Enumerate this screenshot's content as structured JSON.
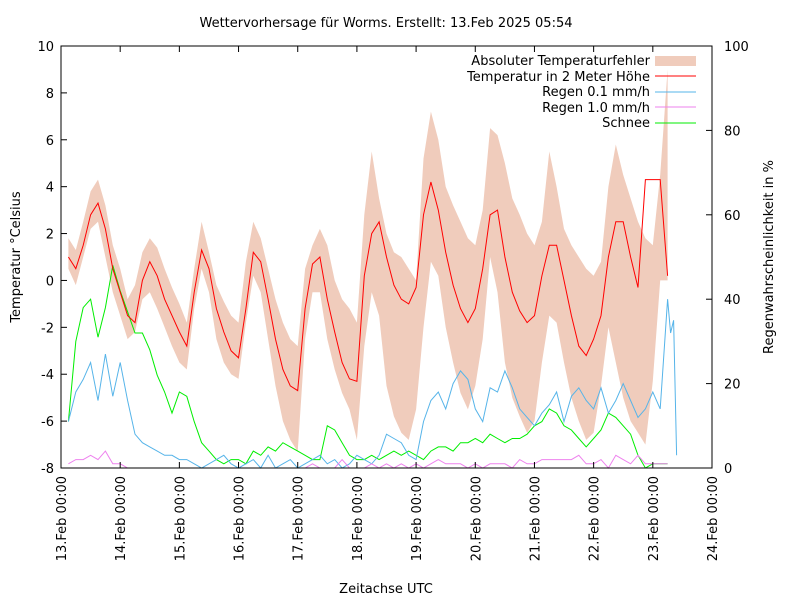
{
  "chart_data": {
    "type": "line",
    "title": "Wettervorhersage für Worms. Erstellt: 13.Feb 2025 05:54",
    "xlabel": "Zeitachse UTC",
    "ylabel": "Temperatur °Celsius",
    "y2label": "Regenwahrscheinlichkeit in %",
    "ylim": [
      -8,
      10
    ],
    "y2lim": [
      0,
      100
    ],
    "xlim_days": [
      0,
      11
    ],
    "grid": false,
    "legend_position": "top-right",
    "yticks": [
      "-8",
      "-6",
      "-4",
      "-2",
      "0",
      "2",
      "4",
      "6",
      "8",
      "10"
    ],
    "y2ticks": [
      "0",
      "20",
      "40",
      "60",
      "80",
      "100"
    ],
    "xticks": [
      "13.Feb 00:00",
      "14.Feb 00:00",
      "15.Feb 00:00",
      "16.Feb 00:00",
      "17.Feb 00:00",
      "18.Feb 00:00",
      "19.Feb 00:00",
      "20.Feb 00:00",
      "21.Feb 00:00",
      "22.Feb 00:00",
      "23.Feb 00:00",
      "24.Feb 00:00"
    ],
    "x_step_hours": 3,
    "x_start_hours": 3,
    "series": [
      {
        "name": "Absoluter Temperaturfehler",
        "kind": "band",
        "axis": "left",
        "color": "#f0ccbc",
        "upper": [
          1.8,
          1.3,
          2.5,
          3.8,
          4.3,
          3.2,
          1.5,
          0.5,
          -0.8,
          -0.2,
          1.2,
          1.8,
          1.4,
          0.5,
          -0.3,
          -1.0,
          -1.8,
          0.5,
          2.5,
          1.2,
          -0.2,
          -0.9,
          -1.5,
          -1.8,
          0.8,
          2.5,
          1.8,
          0.5,
          -0.8,
          -1.8,
          -2.5,
          -2.8,
          0.5,
          1.5,
          2.2,
          1.5,
          0.0,
          -0.8,
          -1.2,
          -1.8,
          2.8,
          5.5,
          3.5,
          2.0,
          1.2,
          1.0,
          0.5,
          0.0,
          5.2,
          7.2,
          6.0,
          4.0,
          3.2,
          2.5,
          1.8,
          1.5,
          3.0,
          6.5,
          6.2,
          5.0,
          3.5,
          2.8,
          2.0,
          1.5,
          2.5,
          5.5,
          4.0,
          2.2,
          1.5,
          1.0,
          0.5,
          0.2,
          0.8,
          4.0,
          5.8,
          4.5,
          3.5,
          2.5,
          1.8,
          1.5,
          4.5,
          9.0
        ],
        "lower": [
          0.5,
          -0.2,
          1.0,
          2.2,
          2.5,
          1.0,
          -0.5,
          -1.5,
          -2.5,
          -2.2,
          -0.8,
          -0.5,
          -1.2,
          -2.0,
          -2.8,
          -3.5,
          -3.8,
          -1.2,
          0.5,
          -0.5,
          -2.5,
          -3.5,
          -4.0,
          -4.2,
          -1.8,
          0.2,
          -0.5,
          -2.5,
          -4.5,
          -6.0,
          -6.8,
          -7.3,
          -2.5,
          -0.5,
          -0.5,
          -2.5,
          -3.8,
          -4.8,
          -5.5,
          -6.8,
          -2.8,
          -0.5,
          -1.5,
          -4.5,
          -5.8,
          -6.5,
          -6.8,
          -5.5,
          -2.0,
          0.8,
          0.2,
          -2.0,
          -3.5,
          -4.8,
          -5.5,
          -4.5,
          -2.5,
          1.0,
          -0.5,
          -3.5,
          -5.0,
          -5.8,
          -6.5,
          -6.0,
          -3.5,
          -1.5,
          -1.8,
          -3.5,
          -5.0,
          -6.0,
          -6.8,
          -6.5,
          -4.5,
          -2.0,
          -3.5,
          -5.0,
          -6.0,
          -6.5,
          -7.0,
          -4.3,
          0.0,
          0.0
        ]
      },
      {
        "name": "Temperatur in 2 Meter Höhe",
        "kind": "line",
        "axis": "left",
        "color": "#ff0000",
        "values": [
          1.0,
          0.5,
          1.5,
          2.8,
          3.3,
          2.2,
          0.5,
          -0.5,
          -1.5,
          -1.8,
          0.0,
          0.8,
          0.2,
          -0.8,
          -1.5,
          -2.2,
          -2.8,
          -0.5,
          1.3,
          0.5,
          -1.2,
          -2.2,
          -3.0,
          -3.3,
          -1.2,
          1.2,
          0.8,
          -0.8,
          -2.5,
          -3.8,
          -4.5,
          -4.7,
          -1.2,
          0.7,
          1.0,
          -0.8,
          -2.2,
          -3.5,
          -4.2,
          -4.3,
          0.2,
          2.0,
          2.5,
          1.0,
          -0.2,
          -0.8,
          -1.0,
          -0.3,
          2.8,
          4.2,
          3.0,
          1.2,
          -0.2,
          -1.2,
          -1.8,
          -1.2,
          0.5,
          2.8,
          3.0,
          1.0,
          -0.5,
          -1.3,
          -1.8,
          -1.5,
          0.2,
          1.5,
          1.5,
          0.0,
          -1.5,
          -2.8,
          -3.2,
          -2.5,
          -1.5,
          1.0,
          2.5,
          2.5,
          1.0,
          -0.3,
          4.3,
          4.3,
          4.3,
          0.2
        ]
      },
      {
        "name": "Regen 0.1 mm/h",
        "kind": "line",
        "axis": "right",
        "color": "#56b4e9",
        "values": [
          11,
          18,
          21,
          25,
          16,
          27,
          17,
          25,
          16,
          8,
          6,
          5,
          4,
          3,
          3,
          2,
          2,
          1,
          0,
          1,
          2,
          3,
          1,
          0,
          1,
          2,
          0,
          3,
          0,
          1,
          2,
          0,
          1,
          2,
          3,
          1,
          2,
          0,
          1,
          3,
          2,
          1,
          3,
          8,
          7,
          6,
          3,
          2,
          11,
          16,
          18,
          14,
          20,
          23,
          21,
          14,
          11,
          19,
          18,
          23,
          19,
          14,
          12,
          10,
          13,
          15,
          18,
          11,
          17,
          19,
          16,
          14,
          19,
          13,
          16,
          20,
          16,
          12,
          14,
          18,
          14,
          40
        ],
        "values_tail": [
          32,
          35,
          3
        ]
      },
      {
        "name": "Regen 1.0 mm/h",
        "kind": "line",
        "axis": "right",
        "color": "#ee82ee",
        "values": [
          1,
          2,
          2,
          3,
          2,
          4,
          1,
          1,
          0,
          0,
          0,
          0,
          0,
          0,
          0,
          0,
          0,
          0,
          0,
          0,
          0,
          0,
          0,
          0,
          0,
          0,
          0,
          0,
          0,
          0,
          0,
          0,
          0,
          1,
          0,
          0,
          0,
          2,
          0,
          0,
          0,
          1,
          0,
          1,
          0,
          1,
          0,
          1,
          0,
          1,
          2,
          1,
          1,
          1,
          0,
          1,
          0,
          1,
          1,
          1,
          0,
          2,
          1,
          1,
          2,
          2,
          2,
          2,
          2,
          3,
          1,
          1,
          2,
          0,
          3,
          2,
          1,
          3,
          1,
          1,
          1,
          1
        ]
      },
      {
        "name": "Schnee",
        "kind": "line",
        "axis": "right",
        "color": "#00ee00",
        "values": [
          11,
          30,
          38,
          40,
          31,
          38,
          48,
          42,
          37,
          32,
          32,
          28,
          22,
          18,
          13,
          18,
          17,
          11,
          6,
          4,
          2,
          1,
          2,
          2,
          1,
          4,
          3,
          5,
          4,
          6,
          5,
          4,
          3,
          2,
          2,
          10,
          9,
          6,
          3,
          2,
          2,
          3,
          2,
          3,
          4,
          3,
          4,
          3,
          2,
          4,
          5,
          5,
          4,
          6,
          6,
          7,
          6,
          8,
          7,
          6,
          7,
          7,
          8,
          10,
          11,
          14,
          13,
          10,
          9,
          7,
          5,
          7,
          9,
          13,
          12,
          10,
          8,
          3,
          0,
          1,
          1,
          1
        ]
      }
    ]
  }
}
